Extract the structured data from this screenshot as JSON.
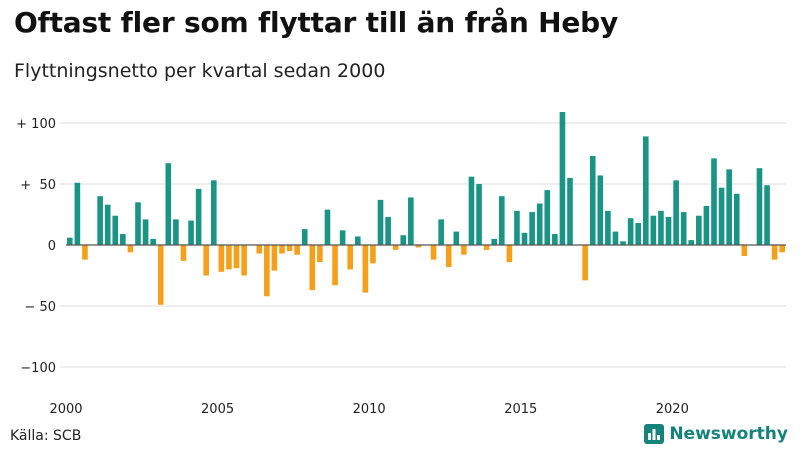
{
  "header": {
    "title": "Oftast fler som flyttar till än från Heby",
    "subtitle": "Flyttningsnetto per kvartal sedan 2000"
  },
  "footer": {
    "source": "Källa: SCB",
    "brand": "Newsworthy",
    "brand_icon": "bar-chart-logo-icon"
  },
  "colors": {
    "positive": "#1a9485",
    "negative": "#f5a01a",
    "grid": "#dddddd",
    "zero_line": "#555555",
    "brand": "#16837a"
  },
  "chart_data": {
    "type": "bar",
    "start": "2000 Q1",
    "frequency": "quarter",
    "values": [
      6,
      51,
      -12,
      0,
      40,
      33,
      24,
      9,
      -6,
      35,
      21,
      5,
      -49,
      67,
      21,
      -13,
      20,
      46,
      -25,
      53,
      -22,
      -20,
      -19,
      -25,
      0,
      -7,
      -42,
      -21,
      -7,
      -5,
      -8,
      13,
      -37,
      -14,
      29,
      -33,
      12,
      -20,
      7,
      -39,
      -15,
      37,
      23,
      -4,
      8,
      39,
      -2,
      0,
      -12,
      21,
      -18,
      11,
      -8,
      56,
      50,
      -4,
      5,
      40,
      -14,
      28,
      10,
      27,
      34,
      45,
      9,
      109,
      55,
      0,
      -29,
      73,
      57,
      28,
      11,
      3,
      22,
      18,
      89,
      24,
      28,
      23,
      53,
      27,
      4,
      24,
      32,
      71,
      47,
      62,
      42,
      -9,
      0,
      63,
      49,
      -12,
      -6
    ],
    "xticks": [
      {
        "label": "2000",
        "index": 0
      },
      {
        "label": "2005",
        "index": 20
      },
      {
        "label": "2010",
        "index": 40
      },
      {
        "label": "2015",
        "index": 60
      },
      {
        "label": "2020",
        "index": 80
      }
    ],
    "yticks": [
      {
        "label": "+ 100",
        "value": 100
      },
      {
        "label": "+  50",
        "value": 50
      },
      {
        "label": "0",
        "value": 0
      },
      {
        "label": "− 50",
        "value": -50
      },
      {
        "label": "−100",
        "value": -100
      }
    ],
    "ylim": [
      -100,
      100
    ],
    "grid": true,
    "legend": "none"
  }
}
